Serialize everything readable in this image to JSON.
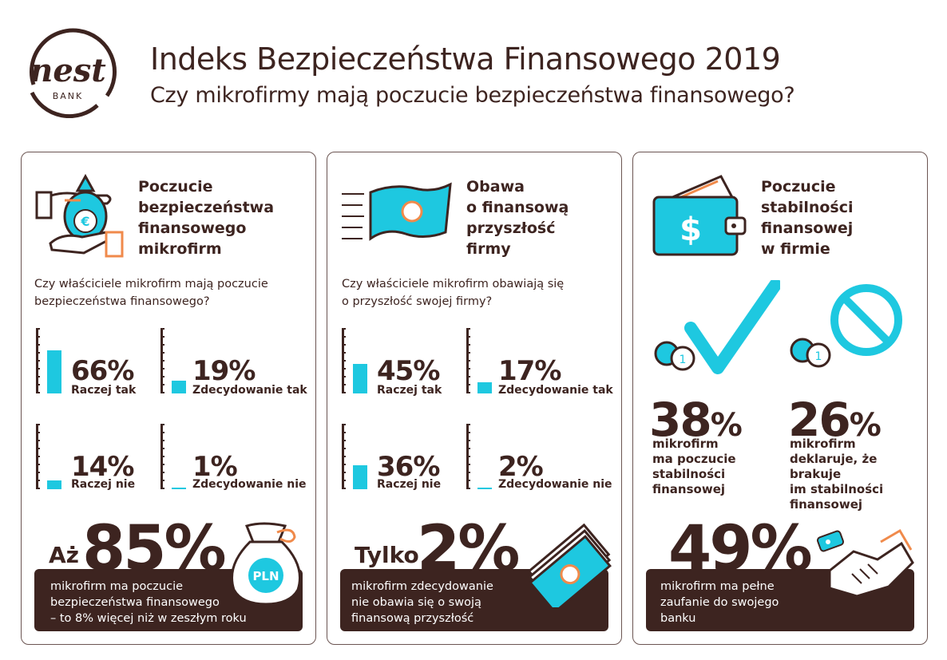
{
  "header": {
    "title": "Indeks Bezpieczeństwa Finansowego 2019",
    "subtitle": "Czy mikrofirmy mają poczucie bezpieczeństwa finansowego?",
    "logo_text": "nest",
    "logo_sub": "BANK"
  },
  "colors": {
    "accent": "#1ec8e0",
    "dark": "#3d2420",
    "orange": "#f08a4b"
  },
  "panel1": {
    "heading": [
      "Poczucie",
      "bezpieczeństwa",
      "finansowego",
      "mikrofirm"
    ],
    "question": [
      "Czy właściciele mikrofirm mają poczucie",
      "bezpieczeństwa finansowego?"
    ],
    "stats": [
      {
        "pct": "66%",
        "label": "Raczej tak",
        "value": 0.66
      },
      {
        "pct": "19%",
        "label": "Zdecydowanie tak",
        "value": 0.19
      },
      {
        "pct": "14%",
        "label": "Raczej nie",
        "value": 0.14
      },
      {
        "pct": "1%",
        "label": "Zdecydowanie nie",
        "value": 0.01
      }
    ],
    "big_prefix": "Aż",
    "big_number": "85%",
    "box_text": [
      "mikrofirm ma poczucie",
      "bezpieczeństwa finansowego",
      "– to 8% więcej niż w zeszłym roku"
    ],
    "bag_label": "PLN",
    "coin_label": "€"
  },
  "panel2": {
    "heading": [
      "Obawa",
      "o finansową",
      "przyszłość",
      "firmy"
    ],
    "question": [
      "Czy właściciele mikrofirm obawiają się",
      "o przyszłość swojej firmy?"
    ],
    "stats": [
      {
        "pct": "45%",
        "label": "Raczej tak",
        "value": 0.45
      },
      {
        "pct": "17%",
        "label": "Zdecydowanie tak",
        "value": 0.17
      },
      {
        "pct": "36%",
        "label": "Raczej nie",
        "value": 0.36
      },
      {
        "pct": "2%",
        "label": "Zdecydowanie nie",
        "value": 0.02
      }
    ],
    "big_prefix": "Tylko",
    "big_number": "2%",
    "box_text": [
      "mikrofirm zdecydowanie",
      "nie obawia się o swoją",
      "finansową przyszłość"
    ]
  },
  "panel3": {
    "heading": [
      "Poczucie",
      "stabilności",
      "finansowej",
      "w firmie"
    ],
    "stat_a": {
      "num": "38",
      "pc": "%",
      "desc": [
        "mikrofirm",
        "ma poczucie",
        "stabilności",
        "finansowej"
      ]
    },
    "stat_b": {
      "num": "26",
      "pc": "%",
      "desc": [
        "mikrofirm",
        "deklaruje, że brakuje",
        "im stabilności",
        "finansowej"
      ]
    },
    "big_number": "49%",
    "box_text": [
      "mikrofirm ma pełne",
      "zaufanie do swojego",
      "banku"
    ],
    "coin_label": "1",
    "dollar": "$"
  }
}
